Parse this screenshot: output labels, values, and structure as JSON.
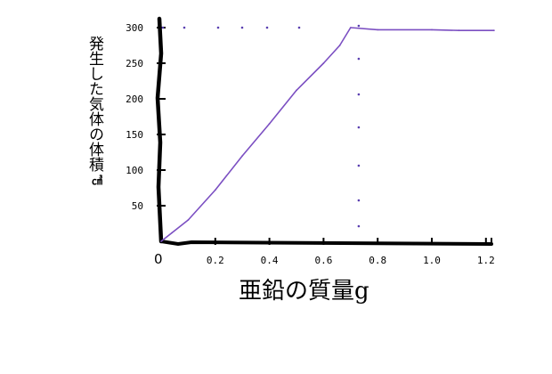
{
  "chart_data": {
    "type": "line",
    "title": "",
    "ylabel": "発生した気体の体積",
    "yunit": "㎤",
    "xlabel": "亜鉛の質量g",
    "x_origin_label": "0",
    "x_tick_labels": [
      "0.2",
      "0.4",
      "0.6",
      "0.8",
      "1.0",
      "1.2"
    ],
    "x_ticks": [
      0.2,
      0.4,
      0.6,
      0.8,
      1.0,
      1.2
    ],
    "y_tick_labels": [
      "50",
      "100",
      "150",
      "200",
      "250",
      "300"
    ],
    "y_ticks": [
      50,
      100,
      150,
      200,
      250,
      300
    ],
    "xlim": [
      0,
      1.23
    ],
    "ylim": [
      0,
      300
    ],
    "grid": false,
    "line_color": "#7b4fc2",
    "marker_color": "#5a3fb0",
    "series": [
      {
        "values": [
          {
            "x": 0,
            "y": 0
          },
          {
            "x": 0.04,
            "y": 12
          },
          {
            "x": 0.1,
            "y": 30
          },
          {
            "x": 0.2,
            "y": 72
          },
          {
            "x": 0.3,
            "y": 120
          },
          {
            "x": 0.4,
            "y": 165
          },
          {
            "x": 0.5,
            "y": 212
          },
          {
            "x": 0.6,
            "y": 250
          },
          {
            "x": 0.66,
            "y": 275
          },
          {
            "x": 0.7,
            "y": 300
          },
          {
            "x": 0.8,
            "y": 297
          },
          {
            "x": 1.0,
            "y": 297
          },
          {
            "x": 1.1,
            "y": 296
          },
          {
            "x": 1.23,
            "y": 296
          }
        ]
      }
    ],
    "reference_lines": {
      "horizontal_y": 300,
      "vertical_x": 0.73
    }
  }
}
